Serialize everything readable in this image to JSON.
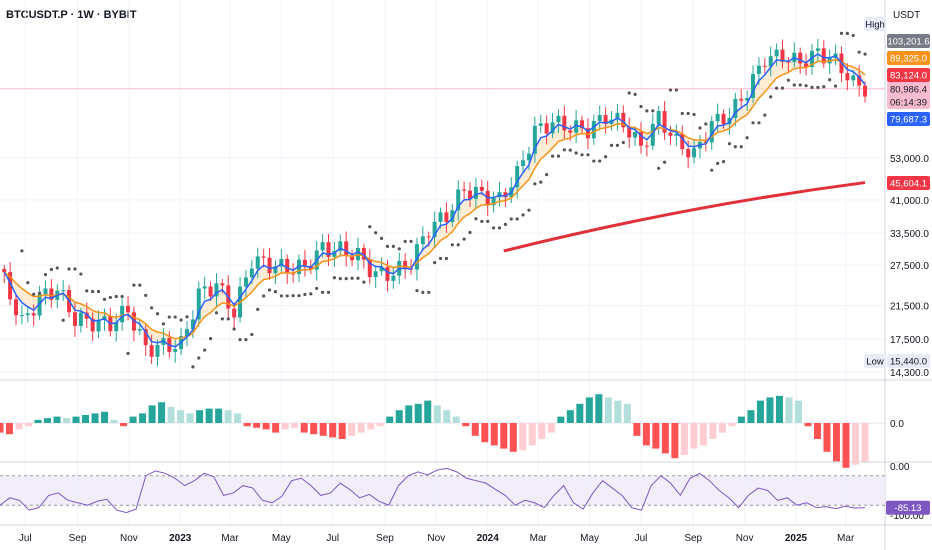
{
  "header": {
    "title": "BTCUSDT.P · 1W · BYBIT",
    "currency": "USDT"
  },
  "colors": {
    "up": "#26a69a",
    "down": "#f23645",
    "ema_fast": "#2962ff",
    "ema_slow": "#f7931a",
    "sma_long": "#e0303a",
    "psar": "#555555",
    "rsi": "#7e57c2",
    "hist_up_strong": "#26a69a",
    "hist_up_weak": "#b2dfdb",
    "hist_down_strong": "#ff5252",
    "hist_down_weak": "#ffcdd2"
  },
  "chart_data": [
    {
      "type": "candlestick",
      "title": "BTCUSDT.P · 1W · BYBIT",
      "scale": "log",
      "y_ticks": [
        "53,000.0",
        "41,000.0",
        "33,500.0",
        "27,500.0",
        "21,500.0",
        "17,500.0",
        "14,300.0"
      ],
      "x_labels": [
        "Jul",
        "Sep",
        "Nov",
        "2023",
        "Mar",
        "May",
        "Jul",
        "Sep",
        "Nov",
        "2024",
        "Mar",
        "May",
        "Jul",
        "Sep",
        "Nov",
        "2025",
        "Mar"
      ],
      "x_label_dates": [
        "2022-07-01",
        "2022-09-01",
        "2022-11-01",
        "2023-01-01",
        "2023-03-01",
        "2023-05-01",
        "2023-07-01",
        "2023-09-01",
        "2023-11-01",
        "2024-01-01",
        "2024-03-01",
        "2024-05-01",
        "2024-07-01",
        "2024-09-01",
        "2024-11-01",
        "2025-01-01",
        "2025-03-01"
      ],
      "price_labels": [
        {
          "text": "High",
          "color": "#e8eaf6",
          "text_color": "#131722"
        },
        {
          "text": "103,201.6",
          "value": 103201.6,
          "color": "#787b86",
          "text_color": "#ffffff"
        },
        {
          "text": "89,325.0",
          "value": 89325.0,
          "color": "#f7931a",
          "text_color": "#ffffff"
        },
        {
          "text": "83,124.0",
          "value": 83124.0,
          "color": "#f23645",
          "text_color": "#ffffff"
        },
        {
          "text": "80,986.4",
          "value": 80986.4,
          "color": "#f8bbd0",
          "text_color": "#131722"
        },
        {
          "text": "06:14:39",
          "color": "#f8bbd0",
          "text_color": "#131722"
        },
        {
          "text": "79,687.3",
          "value": 79687.3,
          "color": "#2962ff",
          "text_color": "#ffffff"
        },
        {
          "text": "45,604.1",
          "value": 45604.1,
          "color": "#f23645",
          "text_color": "#ffffff"
        },
        {
          "text": "Low",
          "color": "#e8eaf6",
          "text_color": "#131722"
        },
        {
          "text": "15,440.0",
          "value": 15440.0,
          "color": "#e8eaf6",
          "text_color": "#131722"
        }
      ],
      "weeks": [
        {
          "date": "2022-06-06",
          "close": 25000
        },
        {
          "date": "2022-06-27",
          "close": 19300
        },
        {
          "date": "2022-07-18",
          "close": 22500
        },
        {
          "date": "2022-08-08",
          "close": 23800
        },
        {
          "date": "2022-08-29",
          "close": 19800
        },
        {
          "date": "2022-09-19",
          "close": 19400
        },
        {
          "date": "2022-10-10",
          "close": 19200
        },
        {
          "date": "2022-10-31",
          "close": 20900
        },
        {
          "date": "2022-11-21",
          "close": 16500
        },
        {
          "date": "2022-12-12",
          "close": 16800
        },
        {
          "date": "2023-01-02",
          "close": 16900
        },
        {
          "date": "2023-01-23",
          "close": 23000
        },
        {
          "date": "2023-02-13",
          "close": 24500
        },
        {
          "date": "2023-03-06",
          "close": 20600
        },
        {
          "date": "2023-03-27",
          "close": 28400
        },
        {
          "date": "2023-04-17",
          "close": 27600
        },
        {
          "date": "2023-05-08",
          "close": 26900
        },
        {
          "date": "2023-05-29",
          "close": 27200
        },
        {
          "date": "2023-06-19",
          "close": 30500
        },
        {
          "date": "2023-07-10",
          "close": 30200
        },
        {
          "date": "2023-07-31",
          "close": 29200
        },
        {
          "date": "2023-08-21",
          "close": 26000
        },
        {
          "date": "2023-09-11",
          "close": 26200
        },
        {
          "date": "2023-10-02",
          "close": 28000
        },
        {
          "date": "2023-10-23",
          "close": 34500
        },
        {
          "date": "2023-11-13",
          "close": 37300
        },
        {
          "date": "2023-12-04",
          "close": 43800
        },
        {
          "date": "2023-12-25",
          "close": 42300
        },
        {
          "date": "2024-01-15",
          "close": 41000
        },
        {
          "date": "2024-02-05",
          "close": 48000
        },
        {
          "date": "2024-02-26",
          "close": 62500
        },
        {
          "date": "2024-03-18",
          "close": 66000
        },
        {
          "date": "2024-04-08",
          "close": 64000
        },
        {
          "date": "2024-04-29",
          "close": 63000
        },
        {
          "date": "2024-05-20",
          "close": 68500
        },
        {
          "date": "2024-06-10",
          "close": 65500
        },
        {
          "date": "2024-07-01",
          "close": 56600
        },
        {
          "date": "2024-07-22",
          "close": 68000
        },
        {
          "date": "2024-08-12",
          "close": 58500
        },
        {
          "date": "2024-09-02",
          "close": 54000
        },
        {
          "date": "2024-09-23",
          "close": 65500
        },
        {
          "date": "2024-10-14",
          "close": 69000
        },
        {
          "date": "2024-11-04",
          "close": 80000
        },
        {
          "date": "2024-11-25",
          "close": 97500
        },
        {
          "date": "2024-12-16",
          "close": 99000
        },
        {
          "date": "2025-01-06",
          "close": 95000
        },
        {
          "date": "2025-01-27",
          "close": 101000
        },
        {
          "date": "2025-02-17",
          "close": 96000
        },
        {
          "date": "2025-03-10",
          "close": 84000
        },
        {
          "date": "2025-03-24",
          "close": 81000
        }
      ]
    },
    {
      "type": "bar",
      "name": "momentum histogram",
      "y_ticks": [
        "0.0"
      ],
      "values": [
        -3,
        -3.5,
        -2,
        -1,
        1,
        1.5,
        2,
        1.5,
        2,
        2.5,
        3,
        3.5,
        1,
        -1,
        2,
        3,
        5.5,
        6.5,
        5,
        4,
        3,
        4,
        4.5,
        4.5,
        4,
        3,
        -1,
        -1.5,
        -2,
        -3,
        -2,
        -1.5,
        -3,
        -3.5,
        -4,
        -4.5,
        -5,
        -4,
        -3,
        -2,
        -1,
        2,
        4,
        5.5,
        6,
        7,
        5.5,
        4,
        2,
        -1,
        -4,
        -6,
        -7,
        -8,
        -9,
        -8.5,
        -7,
        -5,
        -3,
        2,
        4,
        6,
        8,
        9,
        8,
        7,
        6,
        -4,
        -7,
        -8,
        -9.5,
        -11,
        -10,
        -8,
        -7,
        -5,
        -3,
        -1,
        2,
        4,
        7,
        8,
        8.5,
        8,
        7,
        -1,
        -5,
        -9,
        -12,
        -14,
        -13,
        -12
      ]
    },
    {
      "type": "line",
      "name": "RSI",
      "y_ticks": [
        "0.00",
        "-100.00"
      ],
      "last_value": "-85.13",
      "ylim": [
        -100,
        0
      ],
      "values": [
        -80,
        -65,
        -70,
        -90,
        -85,
        -60,
        -55,
        -70,
        -75,
        -80,
        -72,
        -68,
        -90,
        -95,
        -88,
        -20,
        -10,
        -15,
        -25,
        -40,
        -30,
        -15,
        -22,
        -60,
        -55,
        -40,
        -45,
        -70,
        -75,
        -62,
        -30,
        -25,
        -40,
        -60,
        -55,
        -35,
        -48,
        -65,
        -58,
        -72,
        -80,
        -40,
        -20,
        -12,
        -18,
        -8,
        -5,
        -12,
        -25,
        -30,
        -35,
        -48,
        -60,
        -80,
        -70,
        -75,
        -85,
        -60,
        -40,
        -75,
        -88,
        -55,
        -30,
        -45,
        -60,
        -85,
        -90,
        -40,
        -20,
        -35,
        -60,
        -25,
        -15,
        -30,
        -50,
        -65,
        -85,
        -60,
        -45,
        -50,
        -70,
        -65,
        -80,
        -75,
        -85,
        -83,
        -87,
        -82,
        -86,
        -85
      ]
    }
  ]
}
